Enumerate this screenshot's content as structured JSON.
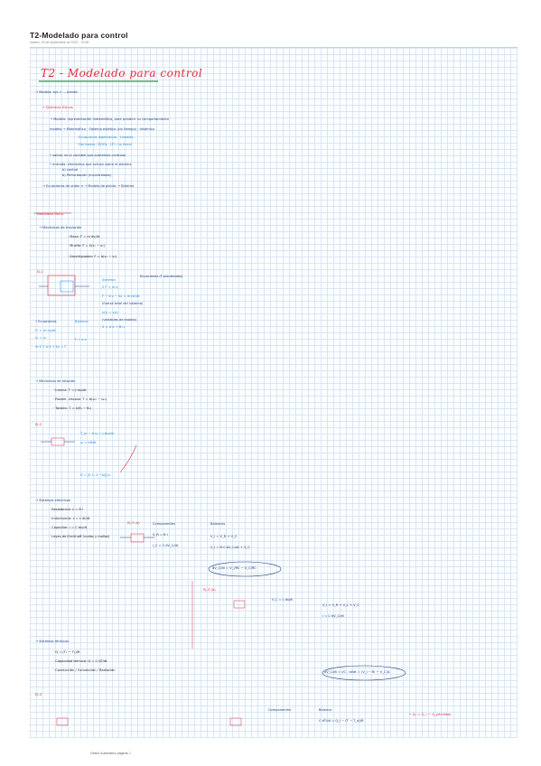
{
  "header": {
    "title": "T2-Modelado para control",
    "date": "martes, 20 de septiembre de 2022  ·  12:38"
  },
  "handwritten_title": "T2 - Modelado para control",
  "footer": "Gestor Automático páginas 1",
  "colors": {
    "ink_dark": "#1f3e7a",
    "ink_cyan": "#2a8fd6",
    "ink_red": "#e0303a",
    "ink_green": "#2e9a47",
    "grid_line": "#bcd3ea"
  },
  "notes": [
    {
      "id": "modelo",
      "text": "→ Modelo: sys ≈ ... planta",
      "cls": "tb"
    },
    {
      "id": "sistemas-fisicos",
      "text": "• Sistemas físicos",
      "cls": "tr"
    },
    {
      "id": "modelo-def",
      "text": "→ Modelo: representación matemática, para predecir su comportamiento",
      "cls": "tb"
    },
    {
      "id": "modelo-tipos",
      "text": "modelo → Matemático · Sistema estático (sin tiempo) · dinámico",
      "cls": "tb"
    },
    {
      "id": "ecuaciones",
      "text": "· Ecuaciones algebraicas · Lineales",
      "cls": "tc"
    },
    {
      "id": "derivadas",
      "text": "· Derivadas / EDOs · LTI / no lineal",
      "cls": "tc"
    },
    {
      "id": "salida",
      "text": "• salida: es la variable que queremos controlar",
      "cls": "tb"
    },
    {
      "id": "entrada",
      "text": "• entrada: elementos que actúan sobre el sistema",
      "cls": "tb"
    },
    {
      "id": "control",
      "text": "b) control",
      "cls": "tb"
    },
    {
      "id": "perturbacion",
      "text": "b) Perturbación (incontrolada)",
      "cls": "tb"
    },
    {
      "id": "ecuaciones-orden",
      "text": "→ Ecuaciones de orden n → Modelo de planta → Sistema",
      "cls": "tb"
    },
    {
      "id": "modelado-fisico",
      "text": "• Modelado físico",
      "cls": "tr"
    },
    {
      "id": "mecanicos-traslacion",
      "text": "→ Mecánicos de traslación",
      "cls": "tb"
    },
    {
      "id": "masa",
      "text": "· Masa: F = m·dv/dt",
      "cls": "tg"
    },
    {
      "id": "muelle",
      "text": "· Muelle: F = k(x₁ − x₂)",
      "cls": "tg"
    },
    {
      "id": "amortiguador",
      "text": "· Amortiguador: F = b(v₁ − v₂)",
      "cls": "tg"
    },
    {
      "id": "ej1",
      "text": "EJ-1",
      "cls": "tr"
    },
    {
      "id": "sistema-label",
      "text": "Sistema:",
      "cls": "tc"
    },
    {
      "id": "ecuaciones-label",
      "text": "Ecuaciones (F planteadas)",
      "cls": "tb"
    },
    {
      "id": "sistema-eq1",
      "text": "Σ F = m·a",
      "cls": "tc"
    },
    {
      "id": "sistema-eq2",
      "text": "F − b·v − kx = m·dv/dt",
      "cls": "tc"
    },
    {
      "id": "sistema-eq3",
      "text": "(fuerza total del sistema)",
      "cls": "tb"
    },
    {
      "id": "sistema-eq4",
      "text": "y(t) = x(t)",
      "cls": "tc"
    },
    {
      "id": "variables-estado",
      "text": "(variables de estado)",
      "cls": "tb"
    },
    {
      "id": "sistema-eq5",
      "text": "Ẋ = A·x + B·u",
      "cls": "tc"
    },
    {
      "id": "ecuaciones-label-2",
      "text": "• Ecuaciones",
      "cls": "tb"
    },
    {
      "id": "balance-label",
      "text": "Balance:",
      "cls": "tc"
    },
    {
      "id": "ec-a",
      "text": "F₁ = m·dv/dt",
      "cls": "tc"
    },
    {
      "id": "ec-b",
      "text": "x₁ = v₁",
      "cls": "tc"
    },
    {
      "id": "ec-c",
      "text": "m·ẍ + b·ẋ + kx = F",
      "cls": "tc"
    },
    {
      "id": "ec-d",
      "text": "F = e·v",
      "cls": "tc"
    },
    {
      "id": "mecanicos-rotacion",
      "text": "→ Mecánicos de rotación",
      "cls": "tb"
    },
    {
      "id": "rot-inercia",
      "text": "· Inercia: T = J·dω/dt",
      "cls": "tg"
    },
    {
      "id": "rot-rozamiento",
      "text": "· Rozam. viscoso: T = b(ω₁ − ω₂)",
      "cls": "tg"
    },
    {
      "id": "rot-torsion",
      "text": "· Torsión: T = k(θ₁ − θ₂)",
      "cls": "tg"
    },
    {
      "id": "ej2",
      "text": "EJ-2",
      "cls": "tr"
    },
    {
      "id": "ej2-eq1",
      "text": "T_m − b·ω = J·dω/dt",
      "cls": "tc"
    },
    {
      "id": "ej2-eq2",
      "text": "ω = dθ/dt",
      "cls": "tc"
    },
    {
      "id": "ej2-eq3",
      "text": "Ẋ = [0 1; 0 −b/J]·x",
      "cls": "tc"
    },
    {
      "id": "sistemas-electricos",
      "text": "→ Sistemas eléctricos",
      "cls": "tb"
    },
    {
      "id": "resistencia",
      "text": "· Resistencia: v = R·i",
      "cls": "tg"
    },
    {
      "id": "inductancia",
      "text": "· Inductancia: v = L·di/dt",
      "cls": "tg"
    },
    {
      "id": "condensador",
      "text": "· Capacitor: i = C·dv/dt",
      "cls": "tg"
    },
    {
      "id": "kirchhoff",
      "text": "· Leyes de Kirchhoff (nudos y mallas)",
      "cls": "tg"
    },
    {
      "id": "ej3",
      "text": "EJ-3 (a)",
      "cls": "tr"
    },
    {
      "id": "componentes",
      "text": "Componentes",
      "cls": "tb"
    },
    {
      "id": "balance-b",
      "text": "Balances",
      "cls": "tb"
    },
    {
      "id": "comp-eq1",
      "text": "V_R = R·i",
      "cls": "tb"
    },
    {
      "id": "comp-eq2",
      "text": "i_C = C·dV_C/dt",
      "cls": "tb"
    },
    {
      "id": "bal-eq1",
      "text": "V_i = V_R + V_C",
      "cls": "tb"
    },
    {
      "id": "bal-eq2",
      "text": "V_i = R·C·dV_C/dt + V_C",
      "cls": "tb"
    },
    {
      "id": "circled-eq",
      "text": "dV_C/dt = V_i/RC − V_C/RC",
      "cls": "tb"
    },
    {
      "id": "ej3b",
      "text": "EJ-3 (b)",
      "cls": "tr"
    },
    {
      "id": "ej3b-eq1",
      "text": "V_L = L·di/dt",
      "cls": "tb"
    },
    {
      "id": "ej3b-eq2",
      "text": "V_i = V_R + V_L + V_C",
      "cls": "tb"
    },
    {
      "id": "ej3b-eq3",
      "text": "i = C·dV_C/dt",
      "cls": "tb"
    },
    {
      "id": "ej3b-circled",
      "text": "dV_C/dt = i/C ; di/dt = (V_i − Ri − V_C)/L",
      "cls": "tb"
    },
    {
      "id": "sistemas-termicos",
      "text": "→ Sistemas térmicos",
      "cls": "tb"
    },
    {
      "id": "term-eq",
      "text": "· Q = (T₁ − T₂)/R",
      "cls": "tg"
    },
    {
      "id": "term-calor",
      "text": "· Capacidad térmica: Q = C·dT/dt",
      "cls": "tg"
    },
    {
      "id": "term-conduccion",
      "text": "· Conducción / Convección / Radiación",
      "cls": "tg"
    },
    {
      "id": "ej4",
      "text": "EJ-4",
      "cls": "tr"
    },
    {
      "id": "ej4-comp",
      "text": "Componentes",
      "cls": "tb"
    },
    {
      "id": "ej4-bal",
      "text": "Balance",
      "cls": "tb"
    },
    {
      "id": "ej4-eq",
      "text": "C·dT/dt = Q_i − (T − T_a)/R",
      "cls": "tb"
    },
    {
      "id": "ej4-note",
      "text": "• Q₀ = Q_i − Q_pérdidas",
      "cls": "tr"
    }
  ]
}
